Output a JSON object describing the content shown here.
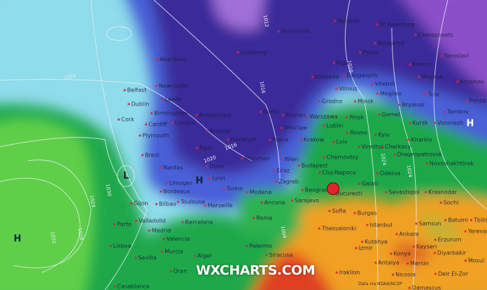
{
  "map": {
    "watermark": "WXCHARTS.COM",
    "source": "Data via NOAA/NCEP",
    "marker_color": "#e0262a",
    "colors": {
      "cold_core": "#3a2a9a",
      "cold": "#4a60d8",
      "cool": "#8fdcec",
      "mild": "#1ea84a",
      "warm": "#f0a020",
      "hot": "#e04020",
      "very_cold": "#8a4fc8"
    },
    "pressure_centers": [
      "H",
      "L",
      "H",
      "H"
    ],
    "isobars": [
      "1016",
      "1016",
      "1020",
      "1016",
      "1012",
      "1020",
      "1024",
      "1030",
      "1024",
      "1028",
      "1032",
      "1004",
      "1024"
    ],
    "cities": [
      "Aberdeen",
      "Newcastle",
      "Belfast",
      "Leeds",
      "Dublin",
      "Birmingham",
      "Cork",
      "Cardiff",
      "London",
      "Plymouth",
      "Amsterdam",
      "Brussel",
      "Frankfurt",
      "Helsinki",
      "St Peterburg",
      "Stockholm",
      "Goteborg",
      "Novgorod",
      "Cherepovets",
      "Pskov",
      "Riga",
      "Yaroslavl",
      "Kalinin",
      "Moskva",
      "Klaipeda",
      "Daugavpils",
      "Vitebsk",
      "Arzamas",
      "Vilnius",
      "Tula",
      "Penza",
      "Grodno",
      "Minsk",
      "Mogilev",
      "Bryansk",
      "Tambov",
      "Gomel",
      "Berlin",
      "Poznan",
      "Warszawa",
      "Pinsk",
      "Kursk",
      "Voronezh",
      "Wroclaw",
      "Lublin",
      "Rovno",
      "Kyiv",
      "Praha",
      "Krakow",
      "Lviv",
      "Kharkiv",
      "Brest",
      "Paris",
      "Nantes",
      "Dijon",
      "Limoges",
      "Lyon",
      "Torino",
      "Bordeaux",
      "Toulouse",
      "Marseille",
      "Gijon",
      "Bilbao",
      "Porto",
      "Valladolid",
      "Barcelona",
      "Madrid",
      "Valencia",
      "Lisboa",
      "Murcia",
      "Sevilla",
      "Alger",
      "Oran",
      "Casablanca",
      "Munchen",
      "Wien",
      "Budapest",
      "Chernovtsy",
      "Vinnitsa",
      "Cherkasy",
      "Dnepropetrovsk",
      "Novoshakhtinsk",
      "Graz",
      "Cluj-Napoca",
      "Zagreb",
      "Modena",
      "Beograd",
      "Bucuresti",
      "Galati",
      "Odessa",
      "Sevastopol",
      "Krasnodar",
      "Sarajevo",
      "Ancona",
      "Sochi",
      "Sofia",
      "Burgas",
      "Roma",
      "Batumi",
      "Tbilisi",
      "Istanbul",
      "Samsun",
      "Thessaloniki",
      "Ankara",
      "Kutahya",
      "Erzurum",
      "Yerevan",
      "Izmir",
      "Kayseri",
      "Palermo",
      "Siracusa",
      "Konya",
      "Diyarbakir",
      "Antalya",
      "Mersin",
      "Mosul",
      "Iraklion",
      "Nicosia",
      "Deir El-Zor",
      "Damascus"
    ]
  }
}
